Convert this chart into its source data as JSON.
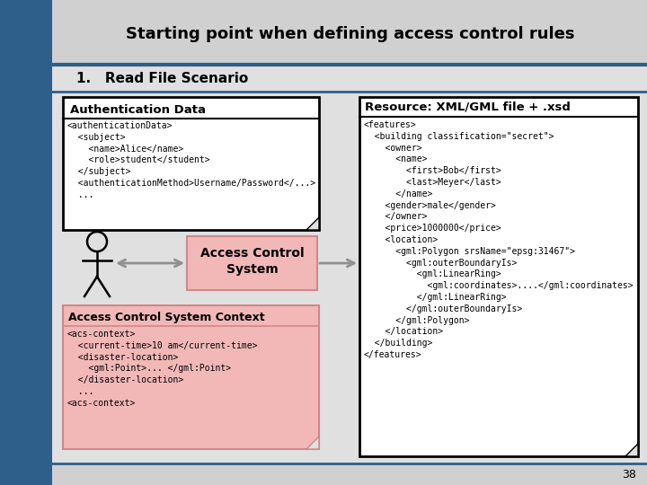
{
  "title": "Starting point when defining access control rules",
  "subtitle": "1.   Read File Scenario",
  "bg_color": "#d0d0d0",
  "slide_bg": "#e0e0e0",
  "left_sidebar_color": "#2e5f8a",
  "blue_line_color": "#2e5f8a",
  "auth_box_title": "Authentication Data",
  "auth_box_content": "<authenticationData>\n  <subject>\n    <name>Alice</name>\n    <role>student</student>\n  </subject>\n  <authenticationMethod>Username/Password</...>\n  ...",
  "acs_context_title": "Access Control System Context",
  "acs_context_content": "<acs-context>\n  <current-time>10 am</current-time>\n  <disaster-location>\n    <gml:Point>... </gml:Point>\n  </disaster-location>\n  ...\n<acs-context>",
  "access_control_label": "Access Control\nSystem",
  "resource_title": "Resource: XML/GML file + .xsd",
  "resource_content": "<features>\n  <building classification=\"secret\">\n    <owner>\n      <name>\n        <first>Bob</first>\n        <last>Meyer</last>\n      </name>\n    <gender>male</gender>\n    </owner>\n    <price>1000000</price>\n    <location>\n      <gml:Polygon srsName=\"epsg:31467\">\n        <gml:outerBoundaryIs>\n          <gml:LinearRing>\n            <gml:coordinates>.......</gml:coordinates>\n          </gml:LinearRing>\n        </gml:outerBoundaryIs>\n      </gml:Polygon>\n    </location>\n  </building>\n</features>",
  "slide_number": "38",
  "pink_color": "#f2b8b8",
  "pink_border": "#d08888",
  "white_color": "#ffffff",
  "black_color": "#000000",
  "gray_arrow_color": "#909090"
}
